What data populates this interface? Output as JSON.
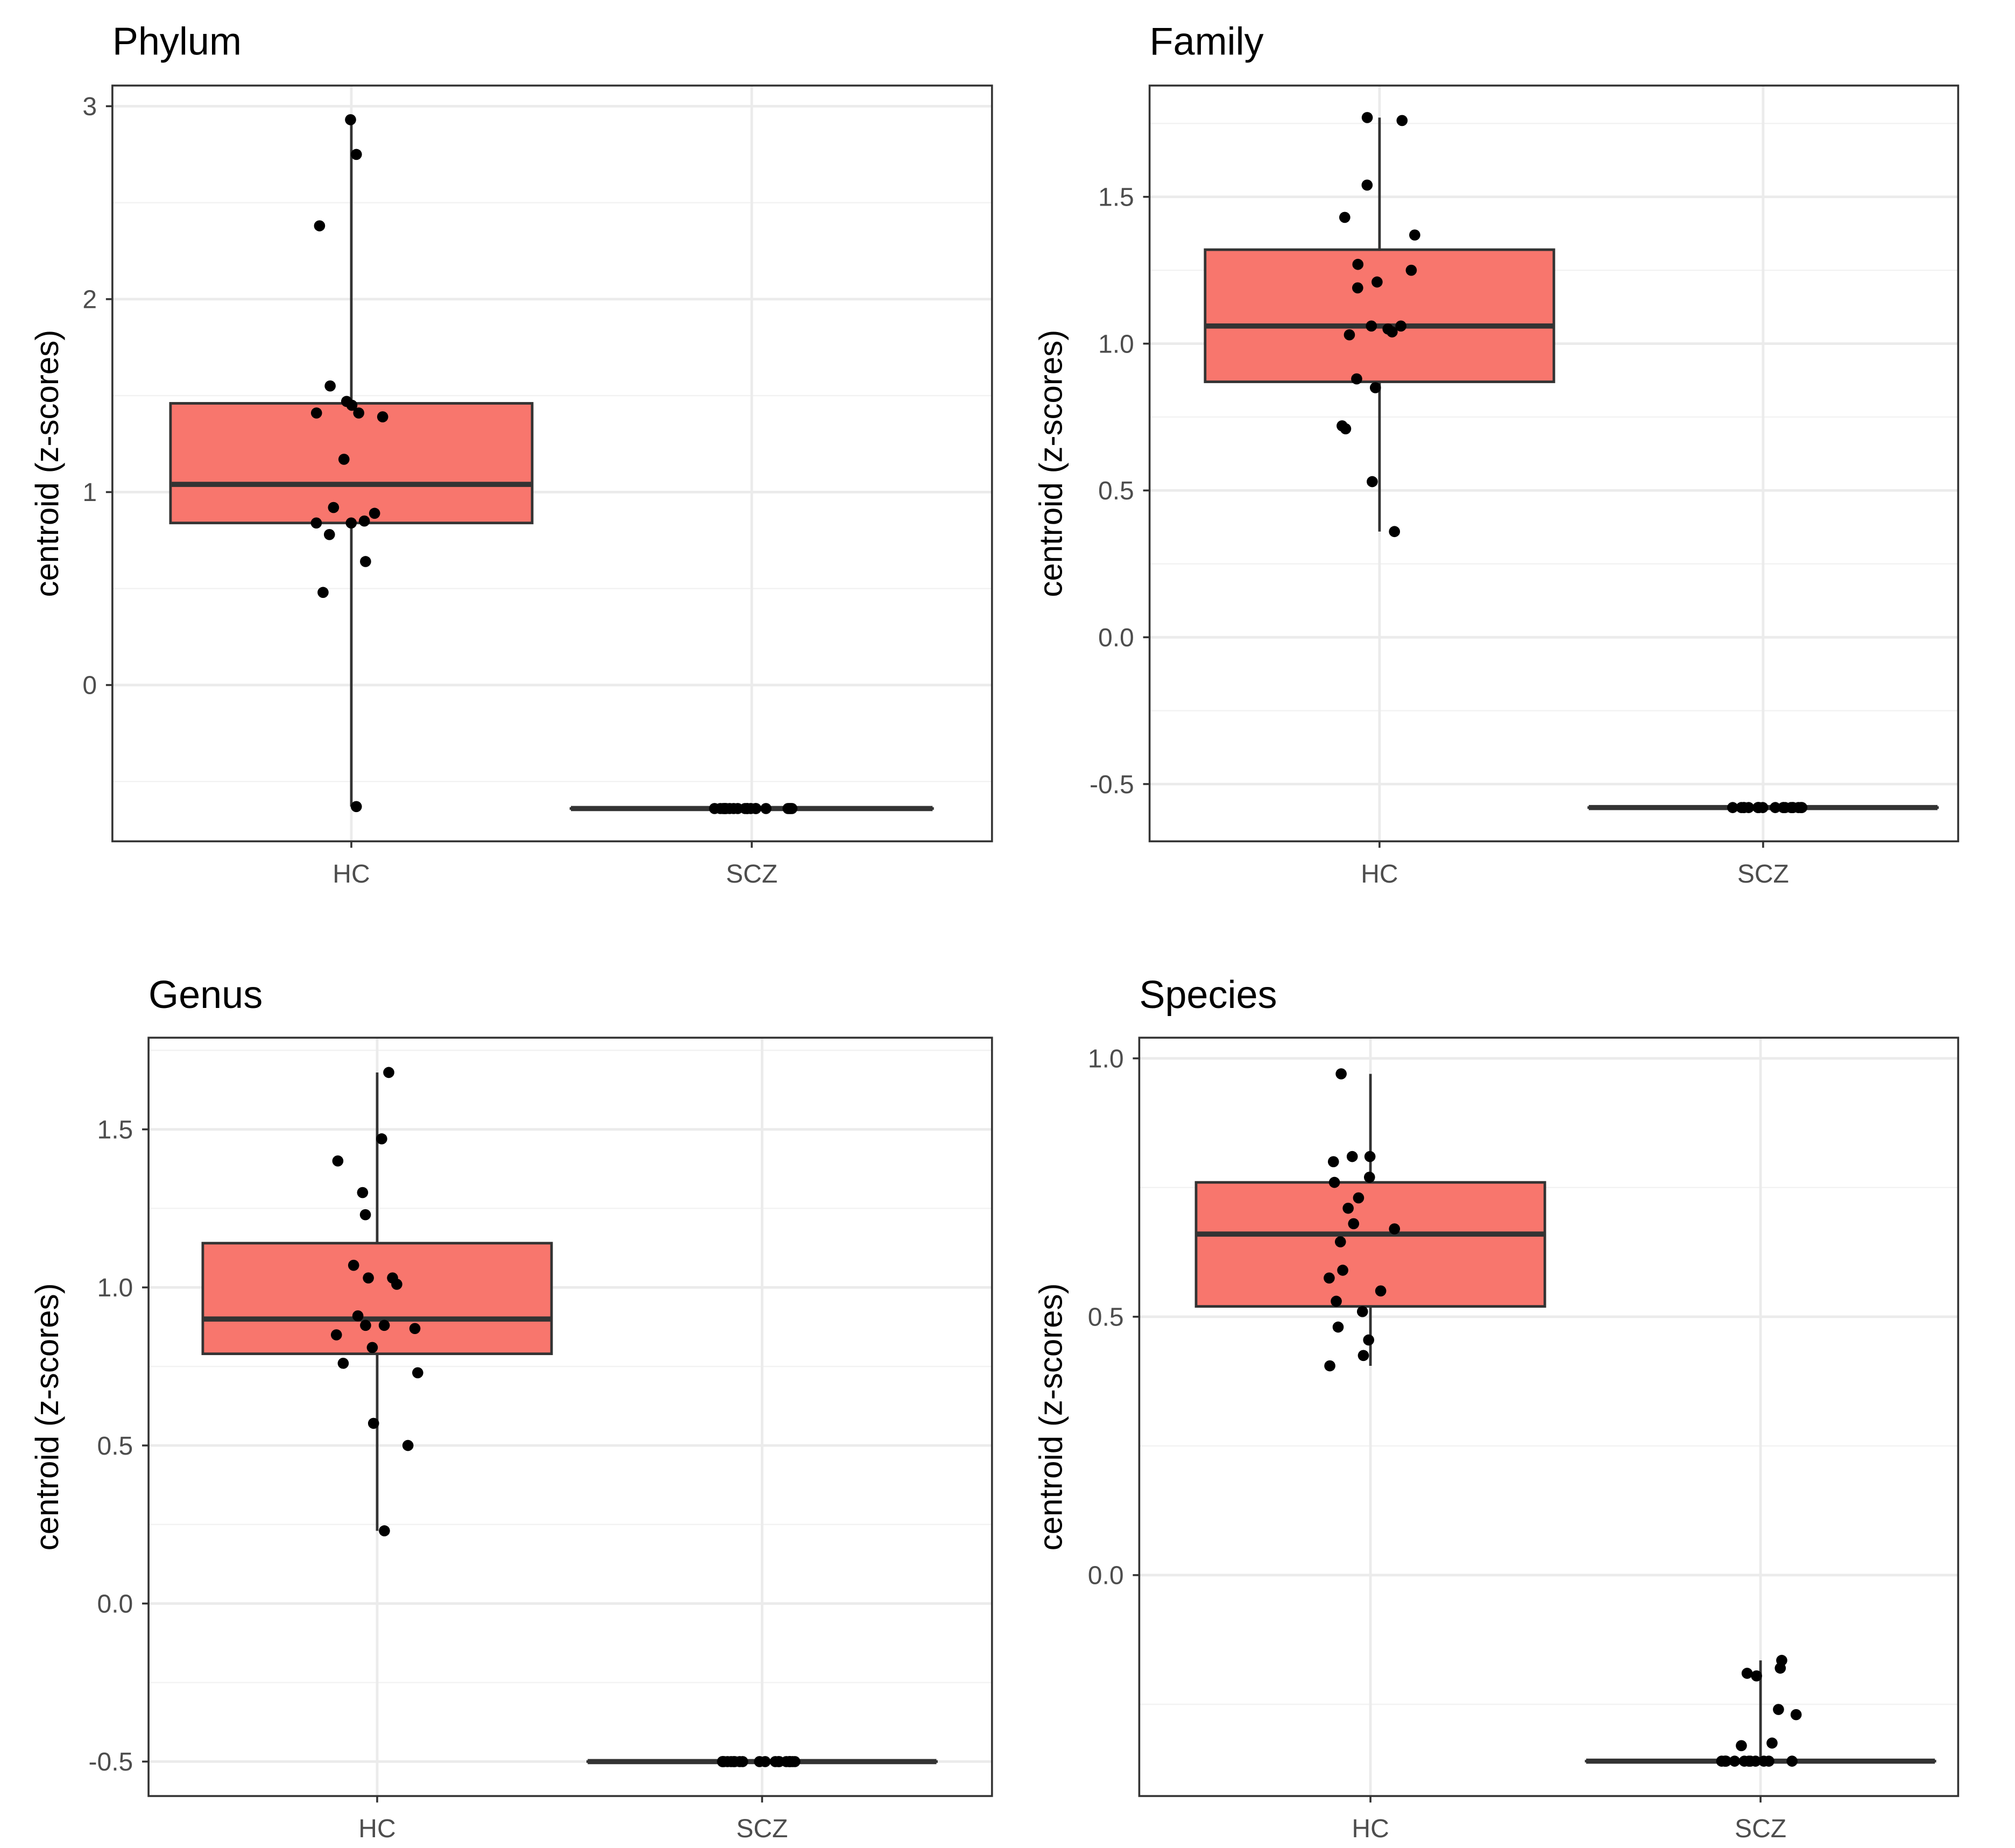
{
  "chart_data": [
    {
      "type": "box",
      "title": "Phylum",
      "ylabel": "centroid (z-scores)",
      "xlabel": "",
      "categories": [
        "HC",
        "SCZ"
      ],
      "ylim": [
        -0.81,
        3.107
      ],
      "yticks": [
        0,
        1,
        2,
        3
      ],
      "ytick_labels": [
        "0",
        "1",
        "2",
        "3"
      ],
      "fill_colors": [
        "#F8766D",
        "#F8766D"
      ],
      "boxes": [
        {
          "min": -0.63,
          "q1": 0.84,
          "median": 1.04,
          "q3": 1.46,
          "max": 2.93
        },
        {
          "min": -0.64,
          "q1": -0.64,
          "median": -0.64,
          "q3": -0.64,
          "max": -0.64
        }
      ],
      "points": [
        [
          2.93,
          2.75,
          2.38,
          1.55,
          1.47,
          1.45,
          1.41,
          1.39,
          1.41,
          1.17,
          0.92,
          0.89,
          0.85,
          0.84,
          0.84,
          0.78,
          0.64,
          0.48,
          -0.63
        ],
        [
          -0.64,
          -0.64,
          -0.64,
          -0.64,
          -0.64,
          -0.64,
          -0.64,
          -0.64,
          -0.64,
          -0.64,
          -0.64,
          -0.64,
          -0.64,
          -0.64,
          -0.64,
          -0.64,
          -0.64,
          -0.64,
          -0.64,
          -0.64
        ]
      ]
    },
    {
      "type": "box",
      "title": "Family",
      "ylabel": "centroid (z-scores)",
      "xlabel": "",
      "categories": [
        "HC",
        "SCZ"
      ],
      "ylim": [
        -0.695,
        1.879
      ],
      "yticks": [
        -0.5,
        0,
        0.5,
        1,
        1.5
      ],
      "ytick_labels": [
        "-0.5",
        "0.0",
        "0.5",
        "1.0",
        "1.5"
      ],
      "fill_colors": [
        "#F8766D",
        "#F8766D"
      ],
      "boxes": [
        {
          "min": 0.36,
          "q1": 0.87,
          "median": 1.06,
          "q3": 1.32,
          "max": 1.77
        },
        {
          "min": -0.58,
          "q1": -0.58,
          "median": -0.58,
          "q3": -0.58,
          "max": -0.58
        }
      ],
      "points": [
        [
          1.76,
          1.77,
          1.54,
          1.43,
          1.37,
          1.27,
          1.25,
          1.21,
          1.19,
          1.05,
          1.06,
          1.06,
          1.04,
          1.03,
          0.88,
          0.85,
          0.71,
          0.72,
          0.53,
          0.36
        ],
        [
          -0.58,
          -0.58,
          -0.58,
          -0.58,
          -0.58,
          -0.58,
          -0.58,
          -0.58,
          -0.58,
          -0.58,
          -0.58,
          -0.58,
          -0.58,
          -0.58,
          -0.58,
          -0.58,
          -0.58,
          -0.58,
          -0.58,
          -0.58
        ]
      ]
    },
    {
      "type": "box",
      "title": "Genus",
      "ylabel": "centroid (z-scores)",
      "xlabel": "",
      "categories": [
        "HC",
        "SCZ"
      ],
      "ylim": [
        -0.609,
        1.79
      ],
      "yticks": [
        -0.5,
        0,
        0.5,
        1,
        1.5
      ],
      "ytick_labels": [
        "-0.5",
        "0.0",
        "0.5",
        "1.0",
        "1.5"
      ],
      "fill_colors": [
        "#F8766D",
        "#F8766D"
      ],
      "boxes": [
        {
          "min": 0.23,
          "q1": 0.79,
          "median": 0.9,
          "q3": 1.14,
          "max": 1.68
        },
        {
          "min": -0.5,
          "q1": -0.5,
          "median": -0.5,
          "q3": -0.5,
          "max": -0.5
        }
      ],
      "points": [
        [
          1.68,
          1.47,
          1.4,
          1.3,
          1.23,
          1.07,
          1.03,
          1.03,
          1.01,
          0.91,
          0.87,
          0.85,
          0.88,
          0.88,
          0.81,
          0.76,
          0.73,
          0.57,
          0.5,
          0.23
        ],
        [
          -0.5,
          -0.5,
          -0.5,
          -0.5,
          -0.5,
          -0.5,
          -0.5,
          -0.5,
          -0.5,
          -0.5,
          -0.5,
          -0.5,
          -0.5,
          -0.5,
          -0.5,
          -0.5,
          -0.5,
          -0.5,
          -0.5,
          -0.5
        ]
      ]
    },
    {
      "type": "box",
      "title": "Species",
      "ylabel": "centroid (z-scores)",
      "xlabel": "",
      "categories": [
        "HC",
        "SCZ"
      ],
      "ylim": [
        -0.4275,
        1.04
      ],
      "yticks": [
        0,
        0.5,
        1
      ],
      "ytick_labels": [
        "0.0",
        "0.5",
        "1.0"
      ],
      "fill_colors": [
        "#F8766D",
        "#F8766D"
      ],
      "boxes": [
        {
          "min": 0.405,
          "q1": 0.52,
          "median": 0.66,
          "q3": 0.76,
          "max": 0.97
        },
        {
          "min": -0.36,
          "q1": -0.36,
          "median": -0.36,
          "q3": -0.36,
          "max": -0.165
        }
      ],
      "points": [
        [
          0.97,
          0.81,
          0.8,
          0.81,
          0.77,
          0.76,
          0.73,
          0.71,
          0.68,
          0.67,
          0.645,
          0.59,
          0.575,
          0.55,
          0.53,
          0.51,
          0.48,
          0.455,
          0.425,
          0.405
        ],
        [
          -0.165,
          -0.195,
          -0.18,
          -0.19,
          -0.27,
          -0.26,
          -0.325,
          -0.33,
          -0.36,
          -0.36,
          -0.36,
          -0.36,
          -0.36,
          -0.36,
          -0.36,
          -0.36,
          -0.36,
          -0.36,
          -0.36,
          -0.36
        ]
      ]
    }
  ]
}
